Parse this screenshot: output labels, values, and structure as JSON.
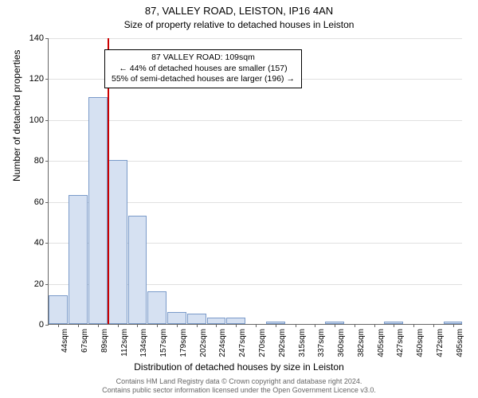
{
  "title": "87, VALLEY ROAD, LEISTON, IP16 4AN",
  "subtitle": "Size of property relative to detached houses in Leiston",
  "chart": {
    "type": "histogram",
    "ylabel": "Number of detached properties",
    "xlabel": "Distribution of detached houses by size in Leiston",
    "ylim": [
      0,
      140
    ],
    "ytick_step": 20,
    "yticks": [
      0,
      20,
      40,
      60,
      80,
      100,
      120,
      140
    ],
    "background_color": "#ffffff",
    "grid_color": "#e0e0e0",
    "axis_color": "#666666",
    "bar_fill": "#d6e1f2",
    "bar_border": "#7a9ac9",
    "marker_color": "#cc0000",
    "marker_value_index": 3,
    "bar_width": 0.96,
    "categories": [
      "44sqm",
      "67sqm",
      "89sqm",
      "112sqm",
      "134sqm",
      "157sqm",
      "179sqm",
      "202sqm",
      "224sqm",
      "247sqm",
      "270sqm",
      "292sqm",
      "315sqm",
      "337sqm",
      "360sqm",
      "382sqm",
      "405sqm",
      "427sqm",
      "450sqm",
      "472sqm",
      "495sqm"
    ],
    "values": [
      14,
      63,
      111,
      80,
      53,
      16,
      6,
      5,
      3,
      3,
      0,
      1,
      0,
      0,
      1,
      0,
      0,
      1,
      0,
      0,
      1
    ],
    "tick_fontsize": 11,
    "xtick_fontsize": 10,
    "label_fontsize": 12
  },
  "annotation": {
    "line1": "87 VALLEY ROAD: 109sqm",
    "line2": "← 44% of detached houses are smaller (157)",
    "line3": "55% of semi-detached houses are larger (196) →"
  },
  "footer": {
    "line1": "Contains HM Land Registry data © Crown copyright and database right 2024.",
    "line2": "Contains public sector information licensed under the Open Government Licence v3.0."
  }
}
